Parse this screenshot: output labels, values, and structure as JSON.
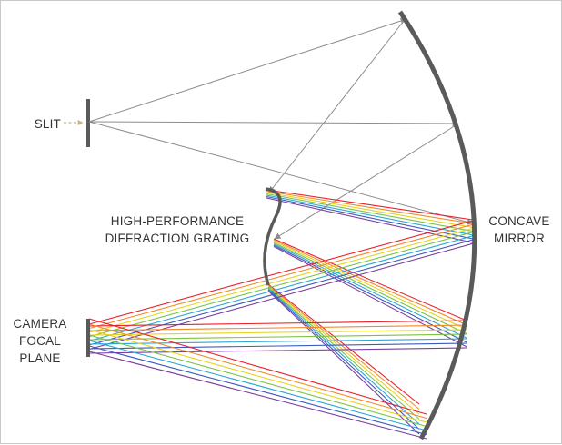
{
  "labels": {
    "slit": "SLIT",
    "grating_line1": "HIGH-PERFORMANCE",
    "grating_line2": "DIFFRACTION GRATING",
    "mirror_line1": "CONCAVE",
    "mirror_line2": "MIRROR",
    "camera_line1": "CAMERA",
    "camera_line2": "FOCAL",
    "camera_line3": "PLANE"
  },
  "colors": {
    "optics": "#5a5a5a",
    "input_beam": "#8c8c8c",
    "input_arrow": "#c8b48c",
    "spectrum": [
      "#e8202a",
      "#f08a2a",
      "#e6d21e",
      "#7cc242",
      "#2aa6d8",
      "#3a5bbf",
      "#7a3fa0"
    ]
  }
}
